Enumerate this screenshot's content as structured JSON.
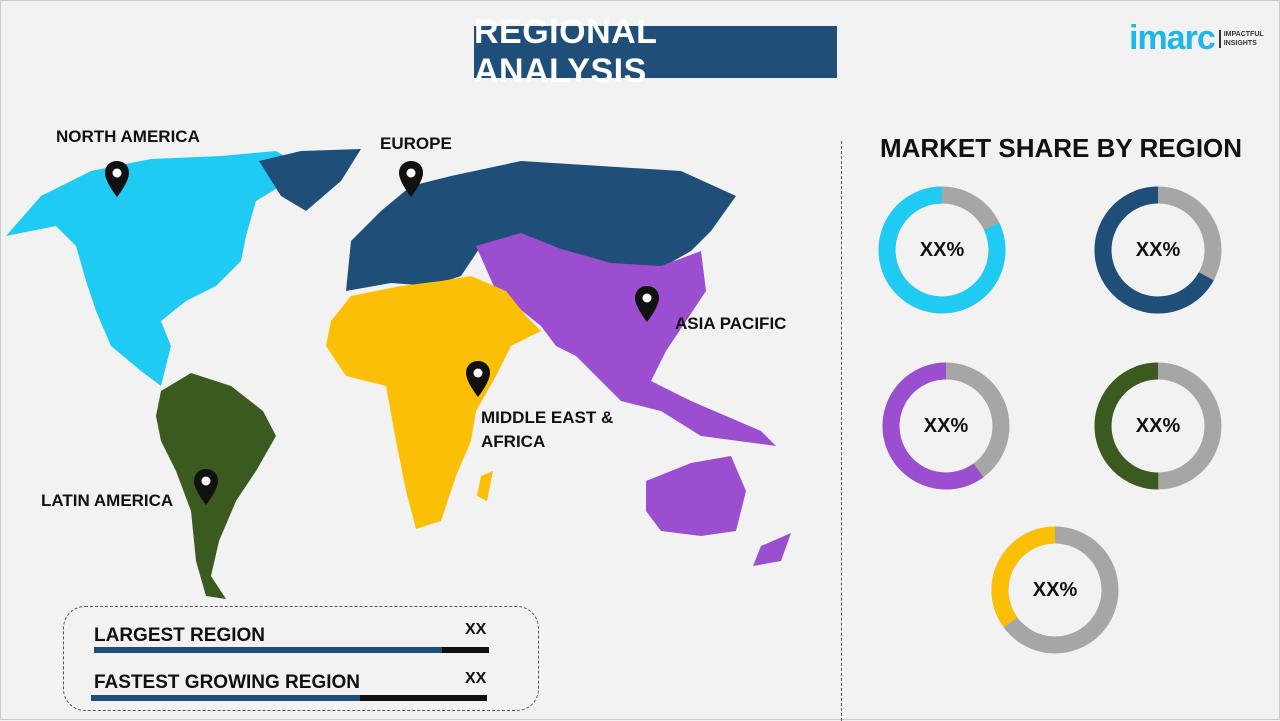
{
  "title": "REGIONAL ANALYSIS",
  "logo": {
    "word": "imarc",
    "tagline_1": "IMPACTFUL",
    "tagline_2": "INSIGHTS"
  },
  "map": {
    "regions": [
      {
        "name": "NORTH AMERICA",
        "color": "#1fcbf2"
      },
      {
        "name": "EUROPE",
        "color": "#1f4e79"
      },
      {
        "name": "ASIA PACIFIC",
        "color": "#9b4fd0"
      },
      {
        "name": "MIDDLE EAST & AFRICA",
        "color": "#fbbf05"
      },
      {
        "name": "LATIN AMERICA",
        "color": "#3b5a1f"
      }
    ],
    "label_mea_2": "AFRICA",
    "label_mea_1": "MIDDLE EAST &"
  },
  "market_share": {
    "title": "MARKET SHARE BY REGION",
    "track_color": "#a6a6a6",
    "donuts": [
      {
        "label": "XX%",
        "color": "#1fcbf2",
        "share": 0.82
      },
      {
        "label": "XX%",
        "color": "#1f4e79",
        "share": 0.67
      },
      {
        "label": "XX%",
        "color": "#9b4fd0",
        "share": 0.6
      },
      {
        "label": "XX%",
        "color": "#3b5a1f",
        "share": 0.5
      },
      {
        "label": "XX%",
        "color": "#fbbf05",
        "share": 0.35
      }
    ]
  },
  "summary": {
    "largest_label": "LARGEST REGION",
    "largest_value": "XX",
    "largest_fill": 0.88,
    "fastest_label": "FASTEST GROWING REGION",
    "fastest_value": "XX",
    "fastest_fill": 0.68
  }
}
